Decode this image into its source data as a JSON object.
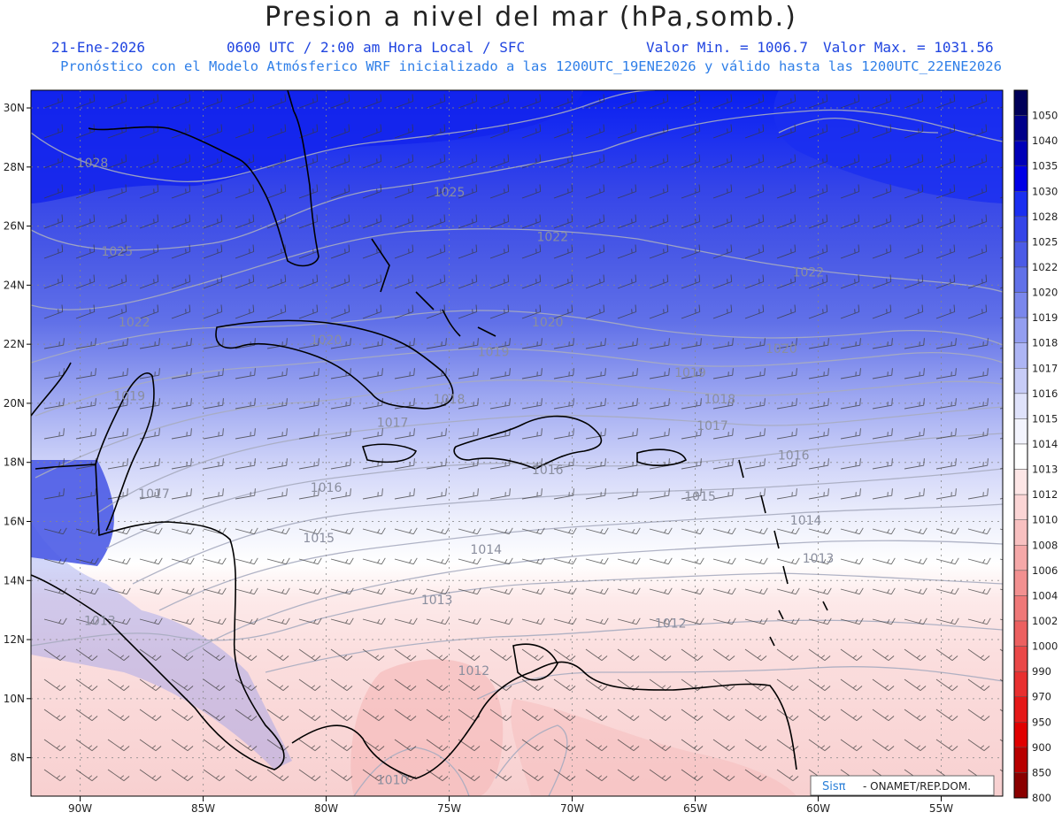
{
  "title": "Presion a nivel del mar (hPa,somb.)",
  "date": "21-Ene-2026",
  "time": "0600 UTC / 2:00 am Hora Local / SFC",
  "valmin": "Valor Min. = 1006.7",
  "valmax": "Valor Max. = 1031.56",
  "forecast": "Pronóstico con el Modelo Atmósferico WRF inicializado a las 1200UTC_19ENE2026 y válido hasta las  1200UTC_22ENE2026",
  "credit": {
    "logo": "Sisπ",
    "text": "- ONAMET/REP.DOM."
  },
  "map": {
    "lon_min": -92,
    "lon_max": -52.5,
    "lat_min": 6.7,
    "lat_max": 30.6,
    "lon_ticks": [
      {
        "v": -90,
        "label": "90W"
      },
      {
        "v": -85,
        "label": "85W"
      },
      {
        "v": -80,
        "label": "80W"
      },
      {
        "v": -75,
        "label": "75W"
      },
      {
        "v": -70,
        "label": "70W"
      },
      {
        "v": -65,
        "label": "65W"
      },
      {
        "v": -60,
        "label": "60W"
      },
      {
        "v": -55,
        "label": "55W"
      }
    ],
    "lat_ticks": [
      {
        "v": 30,
        "label": "30N"
      },
      {
        "v": 28,
        "label": "28N"
      },
      {
        "v": 26,
        "label": "26N"
      },
      {
        "v": 24,
        "label": "24N"
      },
      {
        "v": 22,
        "label": "22N"
      },
      {
        "v": 20,
        "label": "20N"
      },
      {
        "v": 18,
        "label": "18N"
      },
      {
        "v": 16,
        "label": "16N"
      },
      {
        "v": 14,
        "label": "14N"
      },
      {
        "v": 12,
        "label": "12N"
      },
      {
        "v": 10,
        "label": "10N"
      },
      {
        "v": 8,
        "label": "8N"
      }
    ],
    "isobar_labels": [
      {
        "t": "1028",
        "lon": -89.5,
        "lat": 28.0
      },
      {
        "t": "1025",
        "lon": -75.0,
        "lat": 27.0
      },
      {
        "t": "1025",
        "lon": -88.5,
        "lat": 25.0
      },
      {
        "t": "1022",
        "lon": -70.8,
        "lat": 25.5
      },
      {
        "t": "1022",
        "lon": -60.4,
        "lat": 24.3
      },
      {
        "t": "1022",
        "lon": -87.8,
        "lat": 22.6
      },
      {
        "t": "1020",
        "lon": -71.0,
        "lat": 22.6
      },
      {
        "t": "1020",
        "lon": -80.0,
        "lat": 22.0
      },
      {
        "t": "1020",
        "lon": -61.5,
        "lat": 21.7
      },
      {
        "t": "1019",
        "lon": -73.2,
        "lat": 21.6
      },
      {
        "t": "1019",
        "lon": -65.2,
        "lat": 20.9
      },
      {
        "t": "1019",
        "lon": -88.0,
        "lat": 20.1
      },
      {
        "t": "1018",
        "lon": -75.0,
        "lat": 20.0
      },
      {
        "t": "1018",
        "lon": -64.0,
        "lat": 20.0
      },
      {
        "t": "1017",
        "lon": -77.3,
        "lat": 19.2
      },
      {
        "t": "1017",
        "lon": -64.3,
        "lat": 19.1
      },
      {
        "t": "1016",
        "lon": -80.0,
        "lat": 17.0
      },
      {
        "t": "1016",
        "lon": -71.0,
        "lat": 17.6
      },
      {
        "t": "1016",
        "lon": -61.0,
        "lat": 18.1
      },
      {
        "t": "1017",
        "lon": -87.0,
        "lat": 16.8
      },
      {
        "t": "1015",
        "lon": -80.3,
        "lat": 15.3
      },
      {
        "t": "1015",
        "lon": -64.8,
        "lat": 16.7
      },
      {
        "t": "1014",
        "lon": -73.5,
        "lat": 14.9
      },
      {
        "t": "1014",
        "lon": -60.5,
        "lat": 15.9
      },
      {
        "t": "1013",
        "lon": -60.0,
        "lat": 14.6
      },
      {
        "t": "1013",
        "lon": -75.5,
        "lat": 13.2
      },
      {
        "t": "1013",
        "lon": -89.2,
        "lat": 12.5
      },
      {
        "t": "1012",
        "lon": -66.0,
        "lat": 12.4
      },
      {
        "t": "1012",
        "lon": -74.0,
        "lat": 10.8
      },
      {
        "t": "1010",
        "lon": -77.3,
        "lat": 7.1
      }
    ]
  },
  "colorbar": {
    "levels": [
      {
        "label": "1050",
        "color": "#000059"
      },
      {
        "label": "1040",
        "color": "#00008a"
      },
      {
        "label": "1035",
        "color": "#0000b8"
      },
      {
        "label": "1030",
        "color": "#0000e6"
      },
      {
        "label": "1028",
        "color": "#1a2ef0"
      },
      {
        "label": "1025",
        "color": "#3545e8"
      },
      {
        "label": "1022",
        "color": "#4b5be6"
      },
      {
        "label": "1020",
        "color": "#6171e8"
      },
      {
        "label": "1019",
        "color": "#7a87ec"
      },
      {
        "label": "1018",
        "color": "#939ef0"
      },
      {
        "label": "1017",
        "color": "#adb5f4"
      },
      {
        "label": "1016",
        "color": "#c7ccf7"
      },
      {
        "label": "1015",
        "color": "#dfe2fa"
      },
      {
        "label": "1014",
        "color": "#f3f4fd"
      },
      {
        "label": "1013",
        "color": "#ffffff"
      },
      {
        "label": "1012",
        "color": "#fde6e6"
      },
      {
        "label": "1010",
        "color": "#fbd5d5"
      },
      {
        "label": "1008",
        "color": "#f8c0c0"
      },
      {
        "label": "1006",
        "color": "#f5a8a8"
      },
      {
        "label": "1004",
        "color": "#f29090"
      },
      {
        "label": "1002",
        "color": "#ef7878"
      },
      {
        "label": "1000",
        "color": "#ec6060"
      },
      {
        "label": "990",
        "color": "#ea4848"
      },
      {
        "label": "970",
        "color": "#e83030"
      },
      {
        "label": "950",
        "color": "#e51818"
      },
      {
        "label": "900",
        "color": "#e00000"
      },
      {
        "label": "850",
        "color": "#b80000"
      },
      {
        "label": "800",
        "color": "#8a0000"
      }
    ]
  }
}
